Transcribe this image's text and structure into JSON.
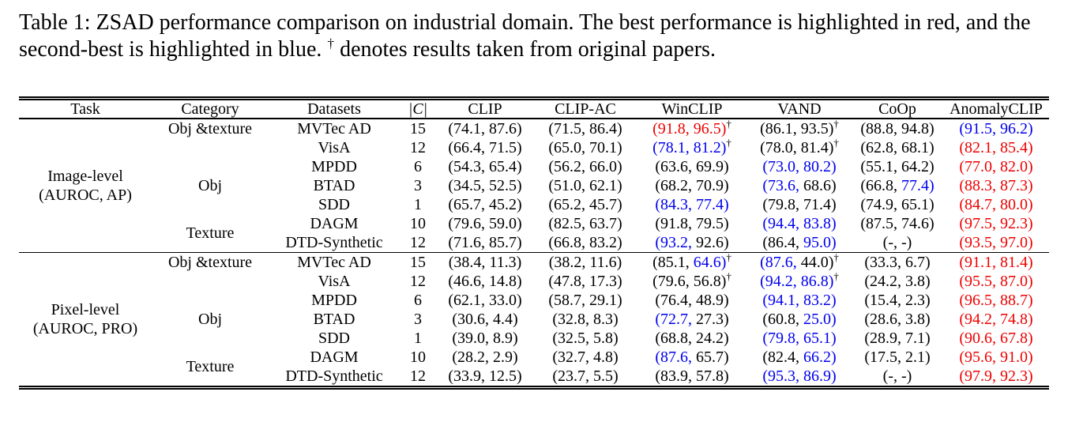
{
  "caption": {
    "before_dagger": "Table 1: ZSAD performance comparison on industrial domain. The best performance is highlighted in red, and the second-best is highlighted in blue.",
    "dagger": "†",
    "after_dagger": "denotes results taken from original papers."
  },
  "dagger_symbol": "†",
  "colors": {
    "best": "#ee0000",
    "second_best": "#0000ee",
    "text": "#000000"
  },
  "columns": [
    "Task",
    "Category",
    "Datasets",
    "|C|",
    "CLIP",
    "CLIP-AC",
    "WinCLIP",
    "VAND",
    "CoOp",
    "AnomalyCLIP"
  ],
  "sections": [
    {
      "task_line1": "Image-level",
      "task_line2": "(AUROC, AP)",
      "groups": [
        {
          "category": "Obj &texture",
          "rows": [
            {
              "dataset": "MVTec AD",
              "num_classes": "15",
              "cells": [
                [
                  "74.1",
                  "87.6",
                  "k",
                  "k",
                  0
                ],
                [
                  "71.5",
                  "86.4",
                  "k",
                  "k",
                  0
                ],
                [
                  "91.8",
                  "96.5",
                  "r",
                  "r",
                  1
                ],
                [
                  "86.1",
                  "93.5",
                  "k",
                  "k",
                  1
                ],
                [
                  "88.8",
                  "94.8",
                  "k",
                  "k",
                  0
                ],
                [
                  "91.5",
                  "96.2",
                  "b",
                  "b",
                  0
                ]
              ]
            },
            {
              "dataset": "VisA",
              "num_classes": "12",
              "cells": [
                [
                  "66.4",
                  "71.5",
                  "k",
                  "k",
                  0
                ],
                [
                  "65.0",
                  "70.1",
                  "k",
                  "k",
                  0
                ],
                [
                  "78.1",
                  "81.2",
                  "b",
                  "b",
                  1
                ],
                [
                  "78.0",
                  "81.4",
                  "k",
                  "k",
                  1
                ],
                [
                  "62.8",
                  "68.1",
                  "k",
                  "k",
                  0
                ],
                [
                  "82.1",
                  "85.4",
                  "r",
                  "r",
                  0
                ]
              ]
            }
          ]
        },
        {
          "category": "Obj",
          "rows": [
            {
              "dataset": "MPDD",
              "num_classes": "6",
              "cells": [
                [
                  "54.3",
                  "65.4",
                  "k",
                  "k",
                  0
                ],
                [
                  "56.2",
                  "66.0",
                  "k",
                  "k",
                  0
                ],
                [
                  "63.6",
                  "69.9",
                  "k",
                  "k",
                  0
                ],
                [
                  "73.0",
                  "80.2",
                  "b",
                  "b",
                  0
                ],
                [
                  "55.1",
                  "64.2",
                  "k",
                  "k",
                  0
                ],
                [
                  "77.0",
                  "82.0",
                  "r",
                  "r",
                  0
                ]
              ]
            },
            {
              "dataset": "BTAD",
              "num_classes": "3",
              "cells": [
                [
                  "34.5",
                  "52.5",
                  "k",
                  "k",
                  0
                ],
                [
                  "51.0",
                  "62.1",
                  "k",
                  "k",
                  0
                ],
                [
                  "68.2",
                  "70.9",
                  "k",
                  "k",
                  0
                ],
                [
                  "73.6",
                  "68.6",
                  "b",
                  "k",
                  0
                ],
                [
                  "66.8",
                  "77.4",
                  "k",
                  "b",
                  0
                ],
                [
                  "88.3",
                  "87.3",
                  "r",
                  "r",
                  0
                ]
              ]
            },
            {
              "dataset": "SDD",
              "num_classes": "1",
              "cells": [
                [
                  "65.7",
                  "45.2",
                  "k",
                  "k",
                  0
                ],
                [
                  "65.2",
                  "45.7",
                  "k",
                  "k",
                  0
                ],
                [
                  "84.3",
                  "77.4",
                  "b",
                  "b",
                  0
                ],
                [
                  "79.8",
                  "71.4",
                  "k",
                  "k",
                  0
                ],
                [
                  "74.9",
                  "65.1",
                  "k",
                  "k",
                  0
                ],
                [
                  "84.7",
                  "80.0",
                  "r",
                  "r",
                  0
                ]
              ]
            }
          ]
        },
        {
          "category": "Texture",
          "rows": [
            {
              "dataset": "DAGM",
              "num_classes": "10",
              "cells": [
                [
                  "79.6",
                  "59.0",
                  "k",
                  "k",
                  0
                ],
                [
                  "82.5",
                  "63.7",
                  "k",
                  "k",
                  0
                ],
                [
                  "91.8",
                  "79.5",
                  "k",
                  "k",
                  0
                ],
                [
                  "94.4",
                  "83.8",
                  "b",
                  "b",
                  0
                ],
                [
                  "87.5",
                  "74.6",
                  "k",
                  "k",
                  0
                ],
                [
                  "97.5",
                  "92.3",
                  "r",
                  "r",
                  0
                ]
              ]
            },
            {
              "dataset": "DTD-Synthetic",
              "num_classes": "12",
              "cells": [
                [
                  "71.6",
                  "85.7",
                  "k",
                  "k",
                  0
                ],
                [
                  "66.8",
                  "83.2",
                  "k",
                  "k",
                  0
                ],
                [
                  "93.2",
                  "92.6",
                  "b",
                  "k",
                  0
                ],
                [
                  "86.4",
                  "95.0",
                  "k",
                  "b",
                  0
                ],
                [
                  "-",
                  "-",
                  "k",
                  "k",
                  0
                ],
                [
                  "93.5",
                  "97.0",
                  "r",
                  "r",
                  0
                ]
              ]
            }
          ]
        }
      ]
    },
    {
      "task_line1": "Pixel-level",
      "task_line2": "(AUROC, PRO)",
      "groups": [
        {
          "category": "Obj &texture",
          "rows": [
            {
              "dataset": "MVTec AD",
              "num_classes": "15",
              "cells": [
                [
                  "38.4",
                  "11.3",
                  "k",
                  "k",
                  0
                ],
                [
                  "38.2",
                  "11.6",
                  "k",
                  "k",
                  0
                ],
                [
                  "85.1",
                  "64.6",
                  "k",
                  "b",
                  1
                ],
                [
                  "87.6",
                  "44.0",
                  "b",
                  "k",
                  1
                ],
                [
                  "33.3",
                  "6.7",
                  "k",
                  "k",
                  0
                ],
                [
                  "91.1",
                  "81.4",
                  "r",
                  "r",
                  0
                ]
              ]
            },
            {
              "dataset": "VisA",
              "num_classes": "12",
              "cells": [
                [
                  "46.6",
                  "14.8",
                  "k",
                  "k",
                  0
                ],
                [
                  "47.8",
                  "17.3",
                  "k",
                  "k",
                  0
                ],
                [
                  "79.6",
                  "56.8",
                  "k",
                  "k",
                  1
                ],
                [
                  "94.2",
                  "86.8",
                  "b",
                  "b",
                  1
                ],
                [
                  "24.2",
                  "3.8",
                  "k",
                  "k",
                  0
                ],
                [
                  "95.5",
                  "87.0",
                  "r",
                  "r",
                  0
                ]
              ]
            }
          ]
        },
        {
          "category": "Obj",
          "rows": [
            {
              "dataset": "MPDD",
              "num_classes": "6",
              "cells": [
                [
                  "62.1",
                  "33.0",
                  "k",
                  "k",
                  0
                ],
                [
                  "58.7",
                  "29.1",
                  "k",
                  "k",
                  0
                ],
                [
                  "76.4",
                  "48.9",
                  "k",
                  "k",
                  0
                ],
                [
                  "94.1",
                  "83.2",
                  "b",
                  "b",
                  0
                ],
                [
                  "15.4",
                  "2.3",
                  "k",
                  "k",
                  0
                ],
                [
                  "96.5",
                  "88.7",
                  "r",
                  "r",
                  0
                ]
              ]
            },
            {
              "dataset": "BTAD",
              "num_classes": "3",
              "cells": [
                [
                  "30.6",
                  "4.4",
                  "k",
                  "k",
                  0
                ],
                [
                  "32.8",
                  "8.3",
                  "k",
                  "k",
                  0
                ],
                [
                  "72.7",
                  "27.3",
                  "b",
                  "k",
                  0
                ],
                [
                  "60.8",
                  "25.0",
                  "k",
                  "b",
                  0
                ],
                [
                  "28.6",
                  "3.8",
                  "k",
                  "k",
                  0
                ],
                [
                  "94.2",
                  "74.8",
                  "r",
                  "r",
                  0
                ]
              ]
            },
            {
              "dataset": "SDD",
              "num_classes": "1",
              "cells": [
                [
                  "39.0",
                  "8.9",
                  "k",
                  "k",
                  0
                ],
                [
                  "32.5",
                  "5.8",
                  "k",
                  "k",
                  0
                ],
                [
                  "68.8",
                  "24.2",
                  "k",
                  "k",
                  0
                ],
                [
                  "79.8",
                  "65.1",
                  "b",
                  "b",
                  0
                ],
                [
                  "28.9",
                  "7.1",
                  "k",
                  "k",
                  0
                ],
                [
                  "90.6",
                  "67.8",
                  "r",
                  "r",
                  0
                ]
              ]
            }
          ]
        },
        {
          "category": "Texture",
          "rows": [
            {
              "dataset": "DAGM",
              "num_classes": "10",
              "cells": [
                [
                  "28.2",
                  "2.9",
                  "k",
                  "k",
                  0
                ],
                [
                  "32.7",
                  "4.8",
                  "k",
                  "k",
                  0
                ],
                [
                  "87.6",
                  "65.7",
                  "b",
                  "k",
                  0
                ],
                [
                  "82.4",
                  "66.2",
                  "k",
                  "b",
                  0
                ],
                [
                  "17.5",
                  "2.1",
                  "k",
                  "k",
                  0
                ],
                [
                  "95.6",
                  "91.0",
                  "r",
                  "r",
                  0
                ]
              ]
            },
            {
              "dataset": "DTD-Synthetic",
              "num_classes": "12",
              "cells": [
                [
                  "33.9",
                  "12.5",
                  "k",
                  "k",
                  0
                ],
                [
                  "23.7",
                  "5.5",
                  "k",
                  "k",
                  0
                ],
                [
                  "83.9",
                  "57.8",
                  "k",
                  "k",
                  0
                ],
                [
                  "95.3",
                  "86.9",
                  "b",
                  "b",
                  0
                ],
                [
                  "-",
                  "-",
                  "k",
                  "k",
                  0
                ],
                [
                  "97.9",
                  "92.3",
                  "r",
                  "r",
                  0
                ]
              ]
            }
          ]
        }
      ]
    }
  ]
}
